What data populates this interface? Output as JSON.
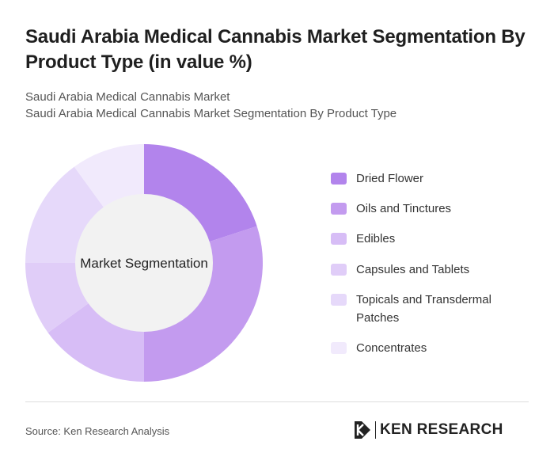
{
  "title": "Saudi Arabia Medical Cannabis Market Segmentation By Product Type (in value %)",
  "subtitle_1": "Saudi Arabia Medical Cannabis Market",
  "subtitle_2": "Saudi Arabia Medical Cannabis Market Segmentation By Product Type",
  "source": "Source: Ken Research Analysis",
  "logo_text": "KEN RESEARCH",
  "chart_data": {
    "type": "pie",
    "center_label": "Market Segmentation",
    "legend_position": "right",
    "categories": [
      "Dried Flower",
      "Oils and Tinctures",
      "Edibles",
      "Capsules and Tablets",
      "Topicals and Transdermal Patches",
      "Concentrates"
    ],
    "values": [
      20,
      30,
      15,
      10,
      15,
      10
    ],
    "colors": [
      "#b284ec",
      "#c39bef",
      "#d7bdf6",
      "#e0cdf8",
      "#e6d9fa",
      "#f1eafc"
    ]
  }
}
